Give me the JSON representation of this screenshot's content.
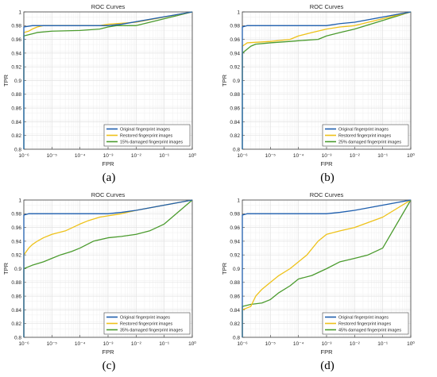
{
  "colors": {
    "original": "#1f5fae",
    "restored": "#eec21a",
    "damaged": "#4b9b2e",
    "grid": "#e2e2e2",
    "axis": "#404040"
  },
  "chart_data": [
    {
      "type": "line",
      "caption": "(a)",
      "title": "ROC Curves",
      "xlabel": "FPR",
      "ylabel": "TPR",
      "x_scale": "log",
      "xlim": [
        1e-06,
        1
      ],
      "ylim": [
        0.8,
        1
      ],
      "xtick_labels": [
        "10⁻⁶",
        "10⁻⁵",
        "10⁻⁴",
        "10⁻³",
        "10⁻²",
        "10⁻¹",
        "10⁰"
      ],
      "ytick_labels": [
        "0.8",
        "0.82",
        "0.84",
        "0.86",
        "0.88",
        "0.9",
        "0.92",
        "0.94",
        "0.96",
        "0.98",
        "1"
      ],
      "grid": true,
      "legend_position": "bottom-right",
      "series": [
        {
          "name": "Original fingerprint images",
          "color_key": "original",
          "x": [
            1e-06,
            1e-06,
            2e-06,
            0.0002,
            0.001,
            0.003,
            1
          ],
          "y": [
            0.8,
            0.978,
            0.98,
            0.98,
            0.98,
            0.982,
            1
          ]
        },
        {
          "name": "Restored fingerprint images",
          "color_key": "restored",
          "x": [
            1e-06,
            1e-06,
            1.5e-06,
            2e-06,
            3e-06,
            5e-06,
            0.0005,
            0.001,
            0.01,
            1
          ],
          "y": [
            0.9,
            0.97,
            0.972,
            0.975,
            0.978,
            0.98,
            0.98,
            0.982,
            0.985,
            1
          ]
        },
        {
          "name": "15% damaged fingerprint images",
          "color_key": "damaged",
          "x": [
            1e-06,
            1e-06,
            2e-06,
            3e-06,
            1e-05,
            0.0001,
            0.0005,
            0.001,
            0.002,
            0.01,
            1
          ],
          "y": [
            0.8,
            0.965,
            0.968,
            0.97,
            0.972,
            0.973,
            0.975,
            0.978,
            0.98,
            0.98,
            1
          ]
        }
      ]
    },
    {
      "type": "line",
      "caption": "(b)",
      "title": "ROC Curves",
      "xlabel": "FPR",
      "ylabel": "TPR",
      "x_scale": "log",
      "xlim": [
        1e-06,
        1
      ],
      "ylim": [
        0.8,
        1
      ],
      "xtick_labels": [
        "10⁻⁶",
        "10⁻⁵",
        "10⁻⁴",
        "10⁻³",
        "10⁻²",
        "10⁻¹",
        "10⁰"
      ],
      "ytick_labels": [
        "0.8",
        "0.82",
        "0.84",
        "0.86",
        "0.88",
        "0.9",
        "0.92",
        "0.94",
        "0.96",
        "0.98",
        "1"
      ],
      "grid": true,
      "legend_position": "bottom-right",
      "series": [
        {
          "name": "Original fingerprint images",
          "color_key": "original",
          "x": [
            1e-06,
            1e-06,
            1.5e-06,
            0.001,
            0.003,
            0.01,
            1
          ],
          "y": [
            0.8,
            0.978,
            0.98,
            0.98,
            0.983,
            0.985,
            1
          ]
        },
        {
          "name": "Restored fingerprint images",
          "color_key": "restored",
          "x": [
            1e-06,
            1e-06,
            1.5e-06,
            1e-05,
            5e-05,
            0.0001,
            0.0003,
            0.001,
            0.003,
            0.01,
            1
          ],
          "y": [
            0.9,
            0.95,
            0.955,
            0.957,
            0.96,
            0.965,
            0.97,
            0.975,
            0.978,
            0.98,
            1
          ]
        },
        {
          "name": "25% damaged fingerprint images",
          "color_key": "damaged",
          "x": [
            1e-06,
            1e-06,
            2e-06,
            3e-06,
            1e-05,
            5e-05,
            0.0001,
            0.0005,
            0.001,
            0.003,
            0.01,
            1
          ],
          "y": [
            0.8,
            0.94,
            0.95,
            0.953,
            0.955,
            0.957,
            0.958,
            0.96,
            0.965,
            0.97,
            0.975,
            1
          ]
        }
      ]
    },
    {
      "type": "line",
      "caption": "(c)",
      "title": "ROC Curves",
      "xlabel": "FPR",
      "ylabel": "TPR",
      "x_scale": "log",
      "xlim": [
        1e-06,
        1
      ],
      "ylim": [
        0.8,
        1
      ],
      "xtick_labels": [
        "10⁻⁶",
        "10⁻⁵",
        "10⁻⁴",
        "10⁻³",
        "10⁻²",
        "10⁻¹",
        "10⁰"
      ],
      "ytick_labels": [
        "0.8",
        "0.82",
        "0.84",
        "0.86",
        "0.88",
        "0.9",
        "0.92",
        "0.94",
        "0.96",
        "0.98",
        "1"
      ],
      "grid": true,
      "legend_position": "bottom-right",
      "series": [
        {
          "name": "Original fingerprint images",
          "color_key": "original",
          "x": [
            1e-06,
            1e-06,
            1.5e-06,
            0.001,
            0.003,
            0.01,
            1
          ],
          "y": [
            0.8,
            0.978,
            0.98,
            0.98,
            0.982,
            0.985,
            1
          ]
        },
        {
          "name": "Restored fingerprint images",
          "color_key": "restored",
          "x": [
            1e-06,
            1e-06,
            1.5e-06,
            2e-06,
            3e-06,
            5e-06,
            1e-05,
            3e-05,
            0.0001,
            0.0002,
            0.0005,
            0.001,
            0.003,
            0.01,
            1
          ],
          "y": [
            0.8,
            0.92,
            0.93,
            0.935,
            0.94,
            0.945,
            0.95,
            0.955,
            0.965,
            0.97,
            0.975,
            0.977,
            0.98,
            0.985,
            1
          ]
        },
        {
          "name": "35% damaged fingerprint images",
          "color_key": "damaged",
          "x": [
            1e-06,
            1e-06,
            2e-06,
            5e-06,
            1e-05,
            2e-05,
            5e-05,
            0.0001,
            0.0003,
            0.001,
            0.003,
            0.01,
            0.03,
            0.1,
            1
          ],
          "y": [
            0.8,
            0.9,
            0.905,
            0.91,
            0.915,
            0.92,
            0.925,
            0.93,
            0.94,
            0.945,
            0.947,
            0.95,
            0.955,
            0.965,
            1
          ]
        }
      ]
    },
    {
      "type": "line",
      "caption": "(d)",
      "title": "ROC Curves",
      "xlabel": "FPR",
      "ylabel": "TPR",
      "x_scale": "log",
      "xlim": [
        1e-06,
        1
      ],
      "ylim": [
        0.8,
        1
      ],
      "xtick_labels": [
        "10⁻⁶",
        "10⁻⁵",
        "10⁻⁴",
        "10⁻³",
        "10⁻²",
        "10⁻¹",
        "10⁰"
      ],
      "ytick_labels": [
        "0.8",
        "0.82",
        "0.84",
        "0.86",
        "0.88",
        "0.9",
        "0.92",
        "0.94",
        "0.96",
        "0.98",
        "1"
      ],
      "grid": true,
      "legend_position": "bottom-right",
      "series": [
        {
          "name": "Original fingerprint images",
          "color_key": "original",
          "x": [
            1e-06,
            1e-06,
            1.5e-06,
            0.001,
            0.003,
            0.01,
            1
          ],
          "y": [
            0.8,
            0.978,
            0.98,
            0.98,
            0.982,
            0.985,
            1
          ]
        },
        {
          "name": "Restored fingerprint images",
          "color_key": "restored",
          "x": [
            1e-06,
            1e-06,
            2e-06,
            3e-06,
            5e-06,
            1e-05,
            2e-05,
            5e-05,
            0.0001,
            0.0002,
            0.0005,
            0.001,
            0.003,
            0.01,
            0.1,
            1
          ],
          "y": [
            0.8,
            0.84,
            0.845,
            0.86,
            0.87,
            0.88,
            0.89,
            0.9,
            0.91,
            0.92,
            0.94,
            0.95,
            0.955,
            0.96,
            0.975,
            1
          ]
        },
        {
          "name": "45% damaged fingerprint images",
          "color_key": "damaged",
          "x": [
            1e-06,
            1e-06,
            2e-06,
            5e-06,
            1e-05,
            2e-05,
            5e-05,
            0.0001,
            0.0003,
            0.001,
            0.003,
            0.01,
            0.03,
            0.1,
            1
          ],
          "y": [
            0.8,
            0.845,
            0.848,
            0.85,
            0.855,
            0.865,
            0.875,
            0.885,
            0.89,
            0.9,
            0.91,
            0.915,
            0.92,
            0.93,
            1
          ]
        }
      ]
    }
  ]
}
